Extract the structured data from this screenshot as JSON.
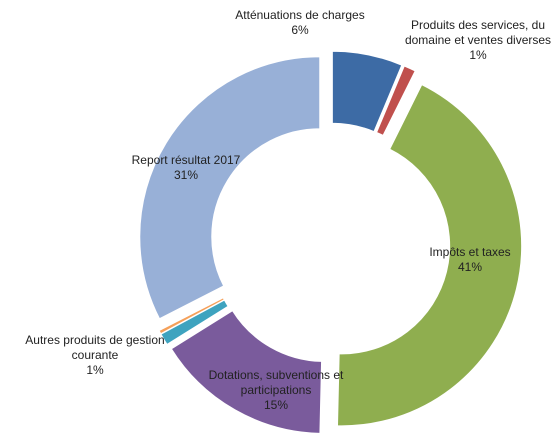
{
  "chart_data": {
    "type": "donut",
    "categories": [
      "Atténuations de charges",
      "Produits des services, du domaine et ventes diverses",
      "Impôts et taxes",
      "Dotations, subventions et participations",
      "Autres produits de gestion courante",
      null,
      "Report résultat 2017"
    ],
    "values": [
      6,
      1,
      41,
      15,
      1,
      0.3,
      31
    ],
    "value_labels": [
      "6%",
      "1%",
      "41%",
      "15%",
      "1%",
      null,
      "31%"
    ],
    "colors": [
      "#3d6ba5",
      "#c0504d",
      "#8fae4f",
      "#7a5b9c",
      "#3ea3bf",
      "#f5a05a",
      "#98b0d7"
    ]
  }
}
